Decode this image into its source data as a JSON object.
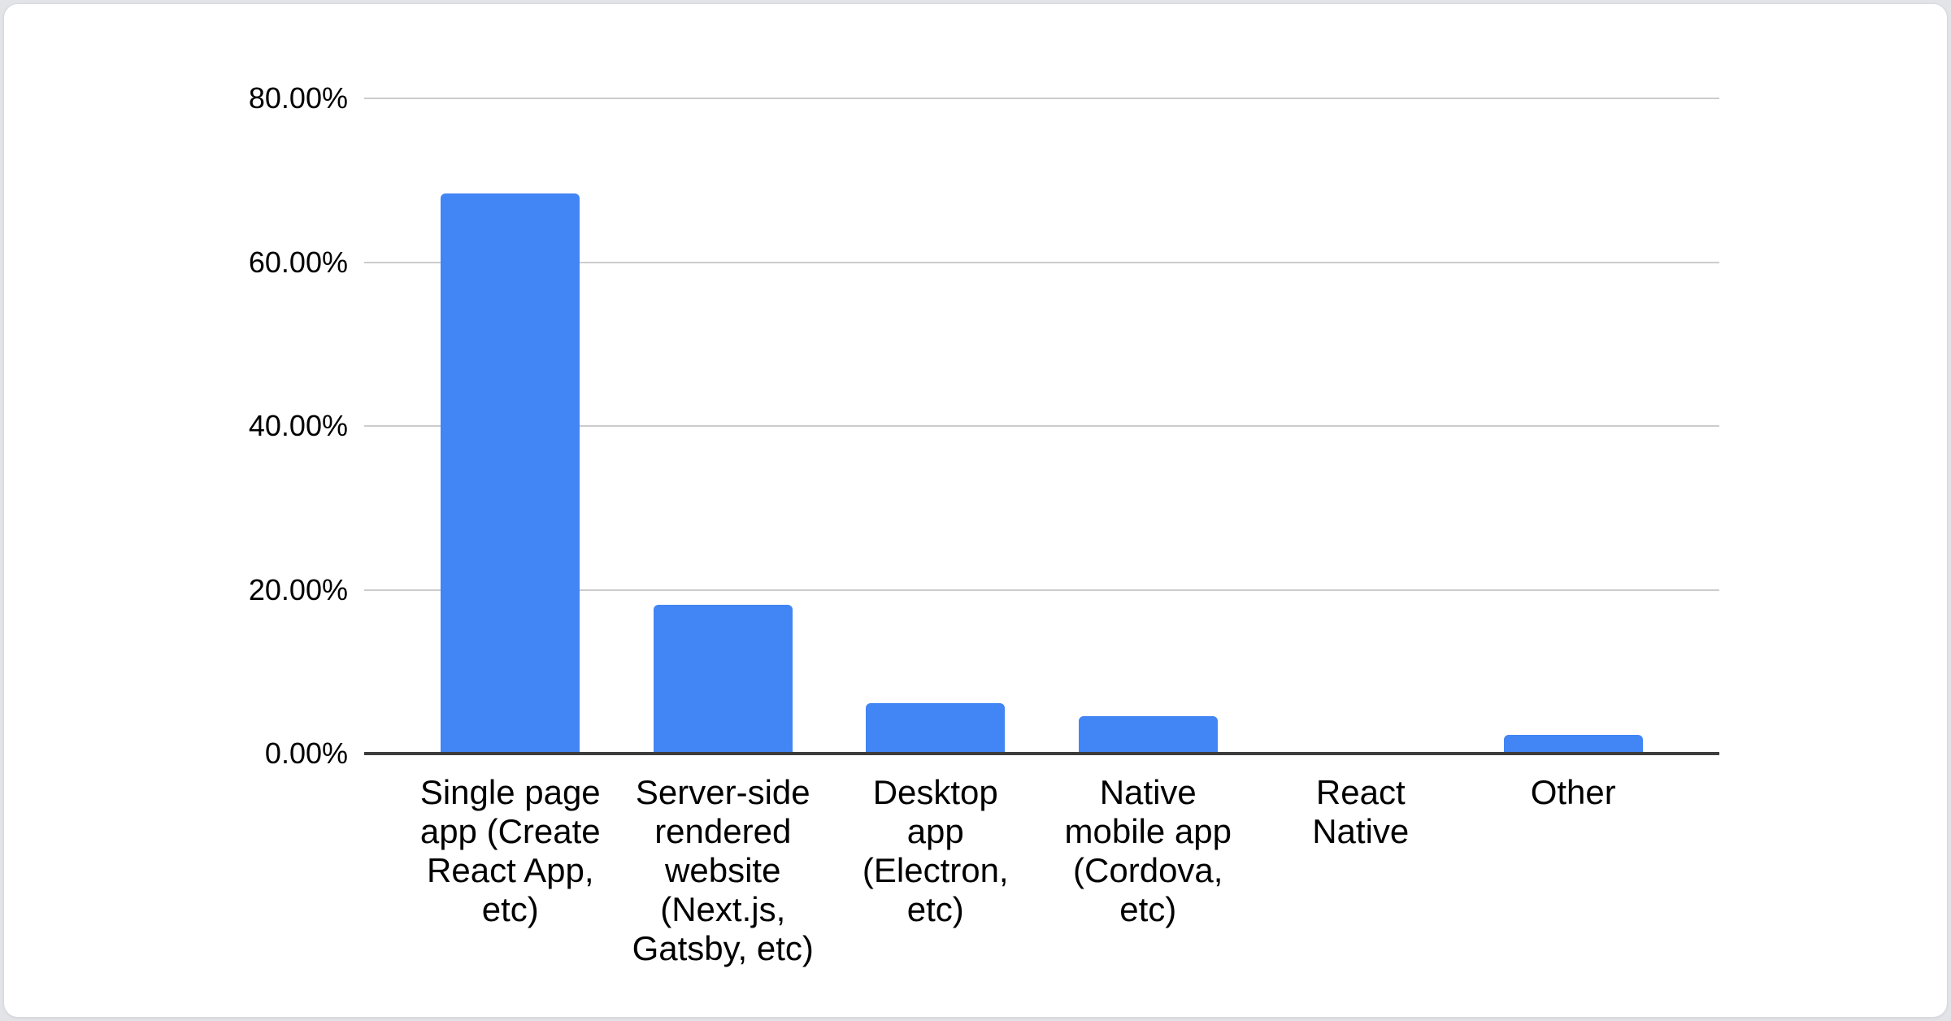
{
  "chart_data": {
    "type": "bar",
    "title": "",
    "xlabel": "",
    "ylabel": "",
    "categories": [
      "Single page app (Create React App, etc)",
      "Server-side rendered website (Next.js, Gatsby, etc)",
      "Desktop app (Electron, etc)",
      "Native mobile app (Cordova, etc)",
      "React Native",
      "Other"
    ],
    "categories_display": [
      "Single page\napp (Create\nReact App,\netc)",
      "Server-side\nrendered\nwebsite\n(Next.js,\nGatsby, etc)",
      "Desktop\napp\n(Electron,\netc)",
      "Native\nmobile app\n(Cordova,\netc)",
      "React\nNative",
      "Other"
    ],
    "values": [
      68.4,
      18.2,
      6.2,
      4.6,
      0,
      2.3
    ],
    "value_unit": "%",
    "yticks": [
      {
        "label": "0.00%",
        "value": 0
      },
      {
        "label": "20.00%",
        "value": 20
      },
      {
        "label": "40.00%",
        "value": 40
      },
      {
        "label": "60.00%",
        "value": 60
      },
      {
        "label": "80.00%",
        "value": 80
      }
    ],
    "ylim": [
      0,
      80
    ],
    "grid": true,
    "legend_position": "none",
    "colors": {
      "bar": "#4285F4",
      "gridline": "#cccccc",
      "baseline": "#3d3d3d",
      "label_text": "#000000",
      "card_background": "#ffffff",
      "page_background": "#e2e4e8"
    }
  }
}
